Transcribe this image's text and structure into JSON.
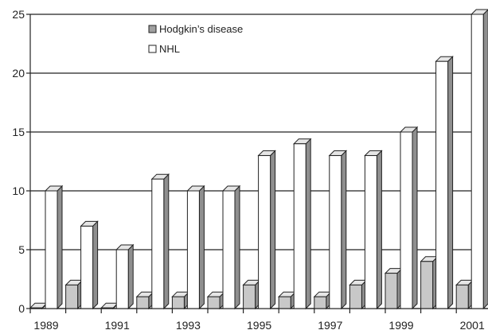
{
  "chart_data": {
    "type": "bar",
    "style": "3d-clustered-column",
    "title": "",
    "xlabel": "",
    "ylabel": "",
    "ylim": [
      0,
      25
    ],
    "yticks": [
      0,
      5,
      10,
      15,
      20,
      25
    ],
    "grid": true,
    "legend_position": "top-center",
    "categories": [
      "1989",
      "1990",
      "1991",
      "1992",
      "1993",
      "1994",
      "1995",
      "1996",
      "1997",
      "1998",
      "1999",
      "2000",
      "2001"
    ],
    "xtick_labels": [
      "1989",
      "",
      "1991",
      "",
      "1993",
      "",
      "1995",
      "",
      "1997",
      "",
      "1999",
      "",
      "2001"
    ],
    "series": [
      {
        "name": "Hodgkin’s disease",
        "values": [
          0,
          2,
          0,
          1,
          1,
          1,
          2,
          1,
          1,
          2,
          3,
          4,
          2
        ],
        "color": "#c8c8c8",
        "side_color": "#8f8f8f"
      },
      {
        "name": "NHL",
        "values": [
          10,
          7,
          5,
          11,
          10,
          10,
          13,
          14,
          13,
          13,
          15,
          21,
          25
        ],
        "color": "#ffffff",
        "side_color": "#8f8f8f"
      }
    ]
  }
}
